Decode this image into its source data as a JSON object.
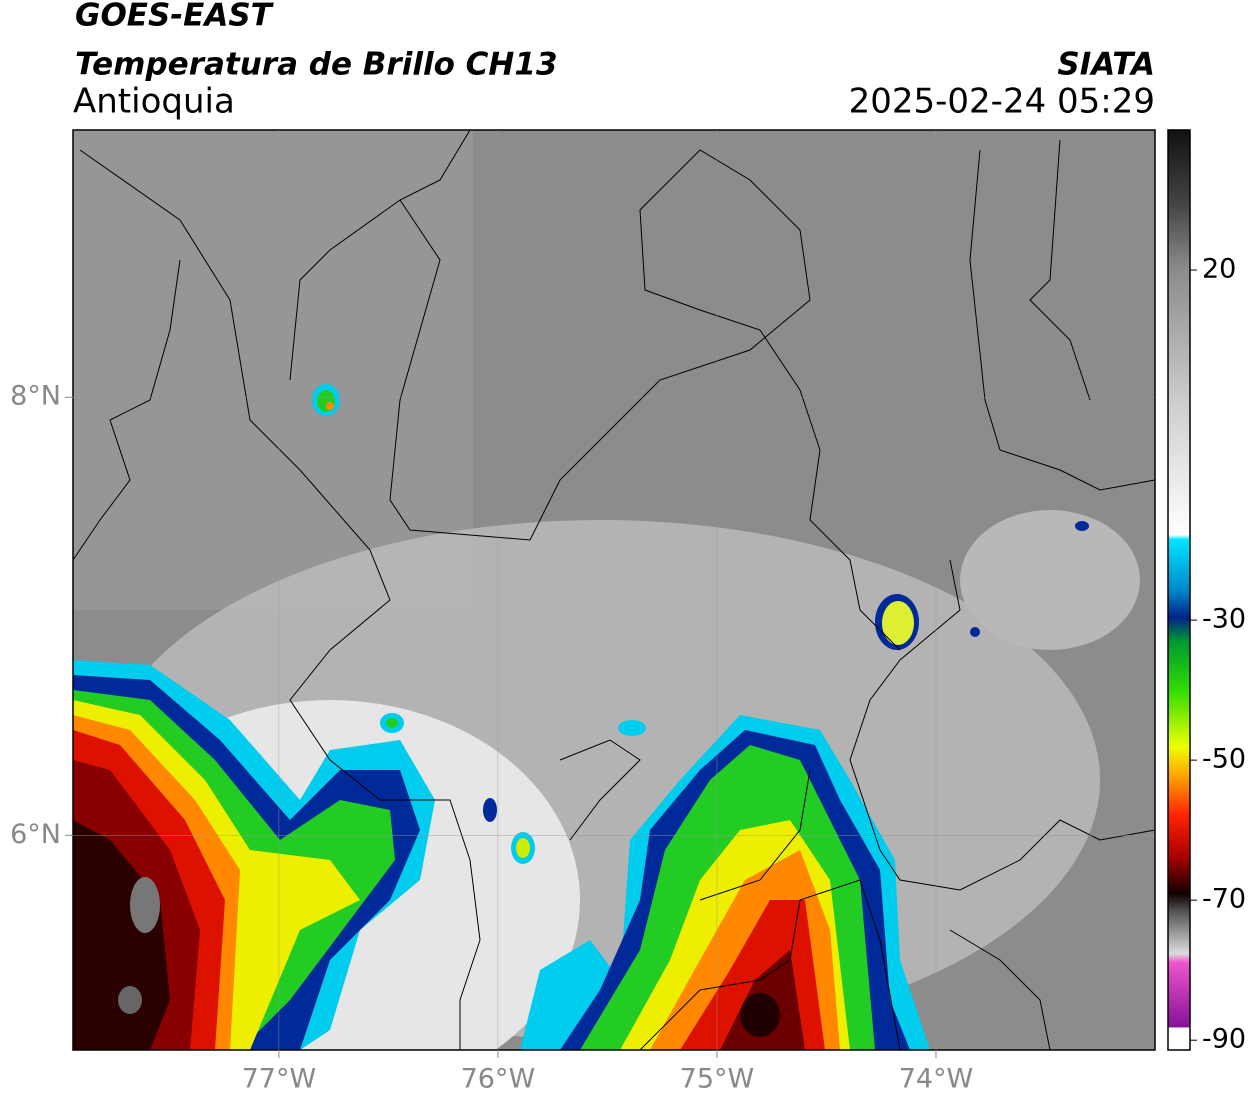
{
  "header": {
    "title": "GOES-EAST",
    "subtitle": "Temperatura de Brillo CH13",
    "region": "Antioquia",
    "source": "SIATA",
    "datetime": "2025-02-24 05:29"
  },
  "map": {
    "lonlim": [
      -77.94,
      -73.0
    ],
    "latlim": [
      5.02,
      9.22
    ],
    "xticks": [
      {
        "value": -77,
        "label": "77°W"
      },
      {
        "value": -76,
        "label": "76°W"
      },
      {
        "value": -75,
        "label": "75°W"
      },
      {
        "value": -74,
        "label": "74°W"
      }
    ],
    "yticks": [
      {
        "value": 8,
        "label": "8°N"
      },
      {
        "value": 6,
        "label": "6°N"
      }
    ],
    "grid": true
  },
  "colorbar": {
    "lim": [
      -91.4,
      40
    ],
    "ticks": [
      20,
      -30,
      -50,
      -70,
      -90
    ]
  }
}
